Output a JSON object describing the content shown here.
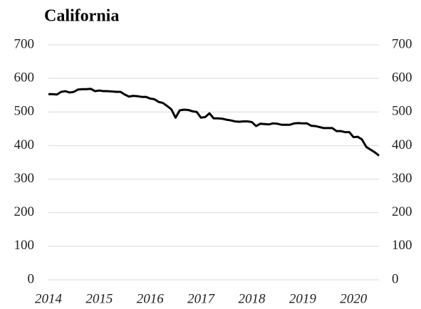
{
  "chart_data": {
    "type": "line",
    "title": "California",
    "categories": [
      "2014",
      null,
      null,
      null,
      null,
      null,
      null,
      null,
      null,
      null,
      null,
      null,
      "2015",
      null,
      null,
      null,
      null,
      null,
      null,
      null,
      null,
      null,
      null,
      null,
      "2016",
      null,
      null,
      null,
      null,
      null,
      null,
      null,
      null,
      null,
      null,
      null,
      "2017",
      null,
      null,
      null,
      null,
      null,
      null,
      null,
      null,
      null,
      null,
      null,
      "2018",
      null,
      null,
      null,
      null,
      null,
      null,
      null,
      null,
      null,
      null,
      null,
      "2019",
      null,
      null,
      null,
      null,
      null,
      null,
      null,
      null,
      null,
      null,
      null,
      "2020",
      null,
      null,
      null,
      null,
      null,
      null
    ],
    "series": [
      {
        "name": "California",
        "color": "#000000",
        "values": [
          553,
          553,
          552,
          560,
          562,
          558,
          560,
          567,
          568,
          568,
          569,
          562,
          564,
          562,
          562,
          561,
          560,
          560,
          552,
          546,
          548,
          547,
          545,
          545,
          540,
          538,
          530,
          527,
          518,
          508,
          483,
          505,
          507,
          506,
          502,
          500,
          483,
          485,
          496,
          481,
          481,
          480,
          477,
          475,
          472,
          471,
          472,
          472,
          470,
          458,
          465,
          464,
          463,
          466,
          465,
          462,
          462,
          462,
          466,
          467,
          466,
          466,
          459,
          458,
          455,
          452,
          452,
          452,
          443,
          443,
          440,
          440,
          425,
          426,
          418,
          396,
          388,
          380,
          370
        ]
      }
    ],
    "ylim": [
      0,
      700
    ],
    "yticks": [
      0,
      100,
      200,
      300,
      400,
      500,
      600,
      700
    ],
    "y2lim": [
      0,
      700
    ],
    "y2ticks": [
      0,
      100,
      200,
      300,
      400,
      500,
      600,
      700
    ],
    "grid": true
  }
}
